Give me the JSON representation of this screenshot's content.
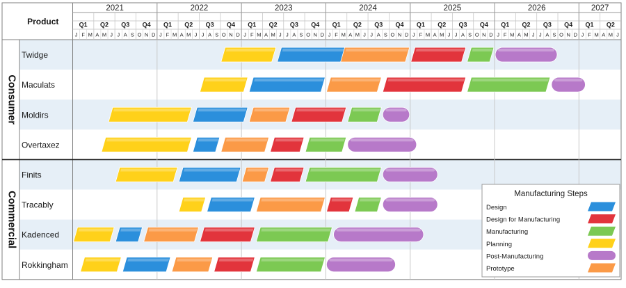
{
  "chart_data": {
    "type": "gantt",
    "header": {
      "product_label": "Product"
    },
    "time_axis": {
      "start": "2021-01",
      "end": "2027-06",
      "years": [
        "2021",
        "2022",
        "2023",
        "2024",
        "2025",
        "2026",
        "2027"
      ],
      "quarter_labels": [
        "Q1",
        "Q2",
        "Q3",
        "Q4"
      ],
      "month_initials": [
        "J",
        "F",
        "M",
        "A",
        "M",
        "J",
        "J",
        "A",
        "S",
        "O",
        "N",
        "D"
      ]
    },
    "steps": {
      "planning": {
        "name": "Planning",
        "color": "#ffd11a",
        "shape": "parallelogram"
      },
      "design": {
        "name": "Design",
        "color": "#2b8fdc",
        "shape": "parallelogram"
      },
      "prototype": {
        "name": "Prototype",
        "color": "#fb9a47",
        "shape": "parallelogram"
      },
      "dfm": {
        "name": "Design for Manufacturing",
        "color": "#e2343c",
        "shape": "parallelogram"
      },
      "manufacturing": {
        "name": "Manufacturing",
        "color": "#7cc953",
        "shape": "parallelogram"
      },
      "post": {
        "name": "Post-Manufacturing",
        "color": "#b779c9",
        "shape": "rounded"
      }
    },
    "groups": [
      {
        "name": "Consumer",
        "products": [
          {
            "name": "Twidge",
            "tasks": [
              {
                "step": "planning",
                "start": "2022-10",
                "end": "2023-06"
              },
              {
                "step": "design",
                "start": "2023-06",
                "end": "2024-04"
              },
              {
                "step": "prototype",
                "start": "2024-03",
                "end": "2025-01"
              },
              {
                "step": "dfm",
                "start": "2025-01",
                "end": "2025-09"
              },
              {
                "step": "manufacturing",
                "start": "2025-09",
                "end": "2026-01"
              },
              {
                "step": "post",
                "start": "2026-01",
                "end": "2026-10"
              }
            ]
          },
          {
            "name": "Maculats",
            "tasks": [
              {
                "step": "planning",
                "start": "2022-07",
                "end": "2023-02"
              },
              {
                "step": "design",
                "start": "2023-02",
                "end": "2024-01"
              },
              {
                "step": "prototype",
                "start": "2024-01",
                "end": "2024-09"
              },
              {
                "step": "dfm",
                "start": "2024-09",
                "end": "2025-09"
              },
              {
                "step": "manufacturing",
                "start": "2025-09",
                "end": "2026-09"
              },
              {
                "step": "post",
                "start": "2026-09",
                "end": "2027-02"
              }
            ]
          },
          {
            "name": "Moldirs",
            "tasks": [
              {
                "step": "planning",
                "start": "2021-06",
                "end": "2022-06"
              },
              {
                "step": "design",
                "start": "2022-06",
                "end": "2023-02"
              },
              {
                "step": "prototype",
                "start": "2023-02",
                "end": "2023-08"
              },
              {
                "step": "dfm",
                "start": "2023-08",
                "end": "2024-04"
              },
              {
                "step": "manufacturing",
                "start": "2024-04",
                "end": "2024-09"
              },
              {
                "step": "post",
                "start": "2024-09",
                "end": "2025-01"
              }
            ]
          },
          {
            "name": "Overtaxez",
            "tasks": [
              {
                "step": "planning",
                "start": "2021-05",
                "end": "2022-06"
              },
              {
                "step": "design",
                "start": "2022-06",
                "end": "2022-10"
              },
              {
                "step": "prototype",
                "start": "2022-10",
                "end": "2023-05"
              },
              {
                "step": "dfm",
                "start": "2023-05",
                "end": "2023-10"
              },
              {
                "step": "manufacturing",
                "start": "2023-10",
                "end": "2024-04"
              },
              {
                "step": "post",
                "start": "2024-04",
                "end": "2025-02"
              }
            ]
          }
        ]
      },
      {
        "name": "Commercial",
        "products": [
          {
            "name": "Finits",
            "tasks": [
              {
                "step": "planning",
                "start": "2021-07",
                "end": "2022-04"
              },
              {
                "step": "design",
                "start": "2022-04",
                "end": "2023-01"
              },
              {
                "step": "prototype",
                "start": "2023-01",
                "end": "2023-05"
              },
              {
                "step": "dfm",
                "start": "2023-05",
                "end": "2023-10"
              },
              {
                "step": "manufacturing",
                "start": "2023-10",
                "end": "2024-09"
              },
              {
                "step": "post",
                "start": "2024-09",
                "end": "2025-05"
              }
            ]
          },
          {
            "name": "Tracably",
            "tasks": [
              {
                "step": "planning",
                "start": "2022-04",
                "end": "2022-08"
              },
              {
                "step": "design",
                "start": "2022-08",
                "end": "2023-03"
              },
              {
                "step": "prototype",
                "start": "2023-03",
                "end": "2024-01"
              },
              {
                "step": "dfm",
                "start": "2024-01",
                "end": "2024-05"
              },
              {
                "step": "manufacturing",
                "start": "2024-05",
                "end": "2024-09"
              },
              {
                "step": "post",
                "start": "2024-09",
                "end": "2025-05"
              }
            ]
          },
          {
            "name": "Kadenced",
            "tasks": [
              {
                "step": "planning",
                "start": "2021-01",
                "end": "2021-07"
              },
              {
                "step": "design",
                "start": "2021-07",
                "end": "2021-11"
              },
              {
                "step": "prototype",
                "start": "2021-11",
                "end": "2022-07"
              },
              {
                "step": "dfm",
                "start": "2022-07",
                "end": "2023-03"
              },
              {
                "step": "manufacturing",
                "start": "2023-03",
                "end": "2024-02"
              },
              {
                "step": "post",
                "start": "2024-02",
                "end": "2025-03"
              }
            ]
          },
          {
            "name": "Rokkingham",
            "tasks": [
              {
                "step": "planning",
                "start": "2021-02",
                "end": "2021-08"
              },
              {
                "step": "design",
                "start": "2021-08",
                "end": "2022-03"
              },
              {
                "step": "prototype",
                "start": "2022-03",
                "end": "2022-09"
              },
              {
                "step": "dfm",
                "start": "2022-09",
                "end": "2023-03"
              },
              {
                "step": "manufacturing",
                "start": "2023-03",
                "end": "2024-01"
              },
              {
                "step": "post",
                "start": "2024-01",
                "end": "2024-11"
              }
            ]
          }
        ]
      }
    ],
    "legend": {
      "title": "Manufacturing Steps",
      "position": "bottom-right",
      "items": [
        "design",
        "dfm",
        "manufacturing",
        "planning",
        "post",
        "prototype"
      ]
    }
  }
}
